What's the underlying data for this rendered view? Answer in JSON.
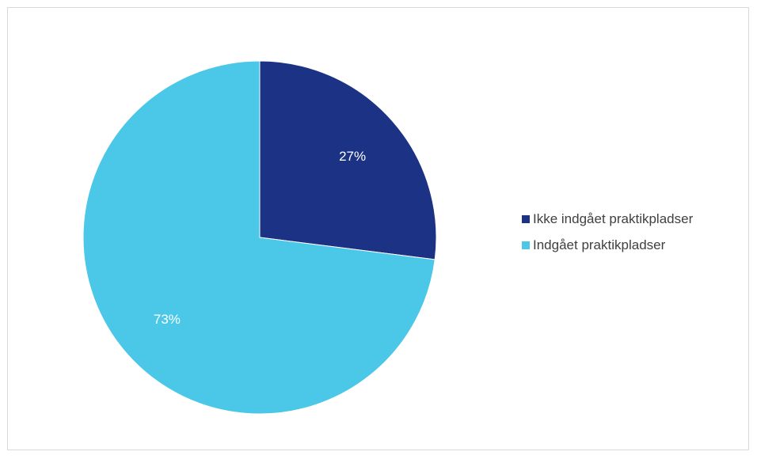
{
  "chart_data": {
    "type": "pie",
    "title": "",
    "categories": [
      "Ikke indgået praktikpladser",
      "Indgået praktikpladser"
    ],
    "values": [
      27,
      73
    ],
    "labels": [
      "27%",
      "73%"
    ],
    "colors": [
      "#1c3385",
      "#4bc7e8"
    ],
    "legend_position": "right",
    "start_angle": "12 o'clock, clockwise"
  }
}
